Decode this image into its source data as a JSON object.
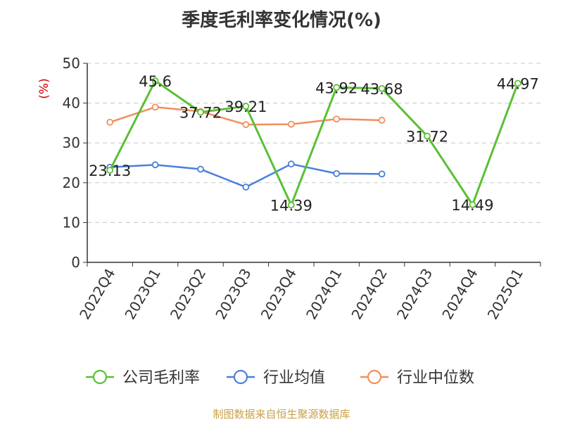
{
  "chart_data": {
    "type": "line",
    "title": "季度毛利率变化情况(%)",
    "ylabel": "(%)",
    "xlabel": "",
    "ylim": [
      0,
      50
    ],
    "yticks": [
      0,
      10,
      20,
      30,
      40,
      50
    ],
    "grid": "horizontal dashed",
    "legend_position": "bottom",
    "categories": [
      "2022Q4",
      "2023Q1",
      "2023Q2",
      "2023Q3",
      "2023Q4",
      "2024Q1",
      "2024Q2",
      "2024Q3",
      "2024Q4",
      "2025Q1"
    ],
    "series": [
      {
        "name": "公司毛利率",
        "color": "#5ac034",
        "values": [
          23.13,
          45.6,
          37.72,
          39.21,
          14.39,
          43.92,
          43.68,
          31.72,
          14.49,
          44.97
        ],
        "labels": [
          "23.13",
          "45.6",
          "37.72",
          "39.21",
          "14.39",
          "43.92",
          "43.68",
          "31.72",
          "14.49",
          "44.97"
        ]
      },
      {
        "name": "行业均值",
        "color": "#4a7fde",
        "values": [
          23.9,
          24.5,
          23.4,
          18.9,
          24.7,
          22.3,
          22.2,
          null,
          null,
          null
        ]
      },
      {
        "name": "行业中位数",
        "color": "#f28e5b",
        "values": [
          35.2,
          39.0,
          37.9,
          34.6,
          34.7,
          36.0,
          35.7,
          null,
          null,
          null
        ]
      }
    ]
  },
  "footer": {
    "source": "制图数据来自恒生聚源数据库"
  }
}
